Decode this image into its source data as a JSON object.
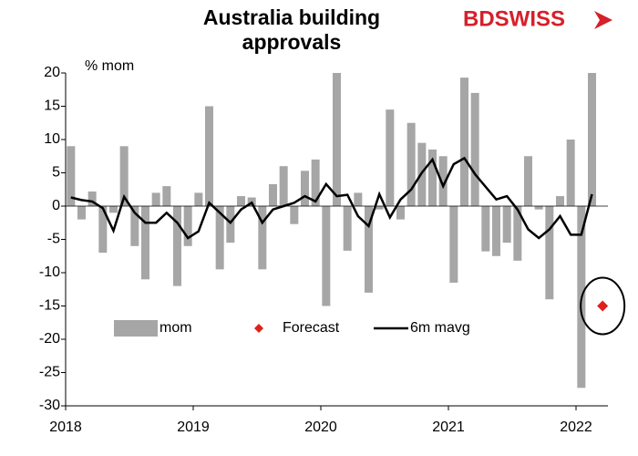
{
  "chart_data": {
    "type": "bar_line",
    "title": "Australia building approvals",
    "y_label": "% mom",
    "logo": "BDSWISS",
    "categories": [
      "2018",
      null,
      null,
      null,
      null,
      null,
      null,
      null,
      null,
      null,
      null,
      null,
      "2019",
      null,
      null,
      null,
      null,
      null,
      null,
      null,
      null,
      null,
      null,
      null,
      "2020",
      null,
      null,
      null,
      null,
      null,
      null,
      null,
      null,
      null,
      null,
      null,
      "2021",
      null,
      null,
      null,
      null,
      null,
      null,
      null,
      null,
      null,
      null,
      null,
      "2022",
      null,
      null
    ],
    "series": [
      {
        "name": "mom",
        "kind": "bar",
        "color": "#a6a6a6",
        "values": [
          9,
          -2,
          2.2,
          -7,
          -1,
          9,
          -6,
          -11,
          2,
          3,
          -12,
          -6,
          2,
          15,
          -9.5,
          -5.5,
          1.5,
          1.3,
          -9.5,
          3.3,
          6,
          -2.7,
          5.3,
          7,
          -15,
          20,
          -6.7,
          2,
          -13,
          -0.5,
          14.5,
          -2,
          12.5,
          9.5,
          8.5,
          7.5,
          -11.5,
          19.3,
          17,
          -6.8,
          -7.5,
          -5.5,
          -8.2,
          7.5,
          -0.5,
          -14,
          1.5,
          10,
          -27.3,
          20,
          null
        ]
      },
      {
        "name": "Forecast",
        "kind": "point",
        "color": "#e0201b",
        "values": [
          null,
          null,
          null,
          null,
          null,
          null,
          null,
          null,
          null,
          null,
          null,
          null,
          null,
          null,
          null,
          null,
          null,
          null,
          null,
          null,
          null,
          null,
          null,
          null,
          null,
          null,
          null,
          null,
          null,
          null,
          null,
          null,
          null,
          null,
          null,
          null,
          null,
          null,
          null,
          null,
          null,
          null,
          null,
          null,
          null,
          null,
          null,
          null,
          null,
          null,
          -15
        ]
      },
      {
        "name": "6m mavg",
        "kind": "line",
        "color": "#000000",
        "values": [
          1.3,
          0.9,
          0.7,
          -0.3,
          -3.7,
          1.4,
          -1,
          -2.5,
          -2.5,
          -1,
          -2.5,
          -4.8,
          -3.8,
          0.5,
          -1,
          -2.5,
          -0.5,
          0.5,
          -2.5,
          -0.5,
          0,
          0.5,
          1.5,
          0.7,
          3.3,
          1.5,
          1.7,
          -1.5,
          -3,
          1.8,
          -1.7,
          1,
          2.5,
          5,
          7,
          3,
          6.3,
          7.2,
          4.8,
          2.9,
          1,
          1.5,
          -0.5,
          -3.5,
          -4.8,
          -3.5,
          -1.5,
          -4.3,
          -4.3,
          1.8,
          null
        ]
      }
    ],
    "ylim": [
      -30,
      20
    ],
    "yticks": [
      -30,
      -25,
      -20,
      -15,
      -10,
      -5,
      0,
      5,
      10,
      15,
      20
    ],
    "grid": false,
    "legend": "bottom"
  }
}
